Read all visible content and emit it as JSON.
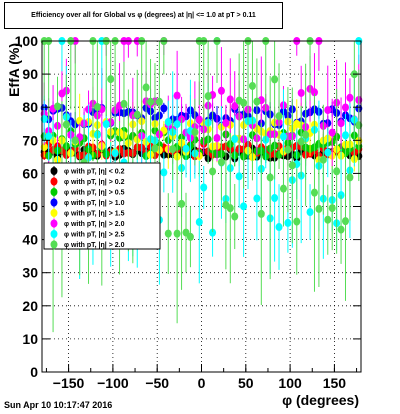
{
  "chart_data": {
    "type": "scatter",
    "title": "Efficiency over all for Global vs φ (degrees) at |η| <= 1.0 at pT > 0.11",
    "xlabel": "φ (degrees)",
    "ylabel": "EffA (%)",
    "xlim": [
      -180,
      180
    ],
    "ylim": [
      0,
      100
    ],
    "x_ticks": [
      -150,
      -100,
      -50,
      0,
      50,
      100,
      150
    ],
    "y_ticks": [
      0,
      10,
      20,
      30,
      40,
      50,
      60,
      70,
      80,
      90,
      100
    ],
    "grid": true,
    "legend_position": "left-middle",
    "series": [
      {
        "name": "φ with pT, |η| < 0.2",
        "color": "#000000",
        "level": 66,
        "spread": 1.5,
        "err": 1
      },
      {
        "name": "φ with pT, |η| > 0.2",
        "color": "#ff0000",
        "level": 67,
        "spread": 2,
        "err": 1.5
      },
      {
        "name": "φ with pT, |η| > 0.5",
        "color": "#00cc00",
        "level": 69,
        "spread": 4,
        "err": 3
      },
      {
        "name": "φ with pT, |η| > 1.0",
        "color": "#0000ff",
        "level": 77,
        "spread": 3,
        "err": 3
      },
      {
        "name": "φ with pT, |η| > 1.5",
        "color": "#ffff00",
        "level": 70,
        "spread": 6,
        "err": 6
      },
      {
        "name": "φ with pT, |η| > 2.0",
        "color": "#ff00ff",
        "level": 78,
        "spread": 8,
        "err": 10
      },
      {
        "name": "φ with pT, |η| > 2.5",
        "color": "#00ffff",
        "level": 60,
        "spread": 18,
        "err": 15
      },
      {
        "name": "φ with pT, |η| > 2.0",
        "color": "#55dd55",
        "level": 65,
        "spread": 25,
        "err": 22
      }
    ]
  },
  "footer": {
    "timestamp": "Sun Apr 10 10:17:47 2016"
  }
}
